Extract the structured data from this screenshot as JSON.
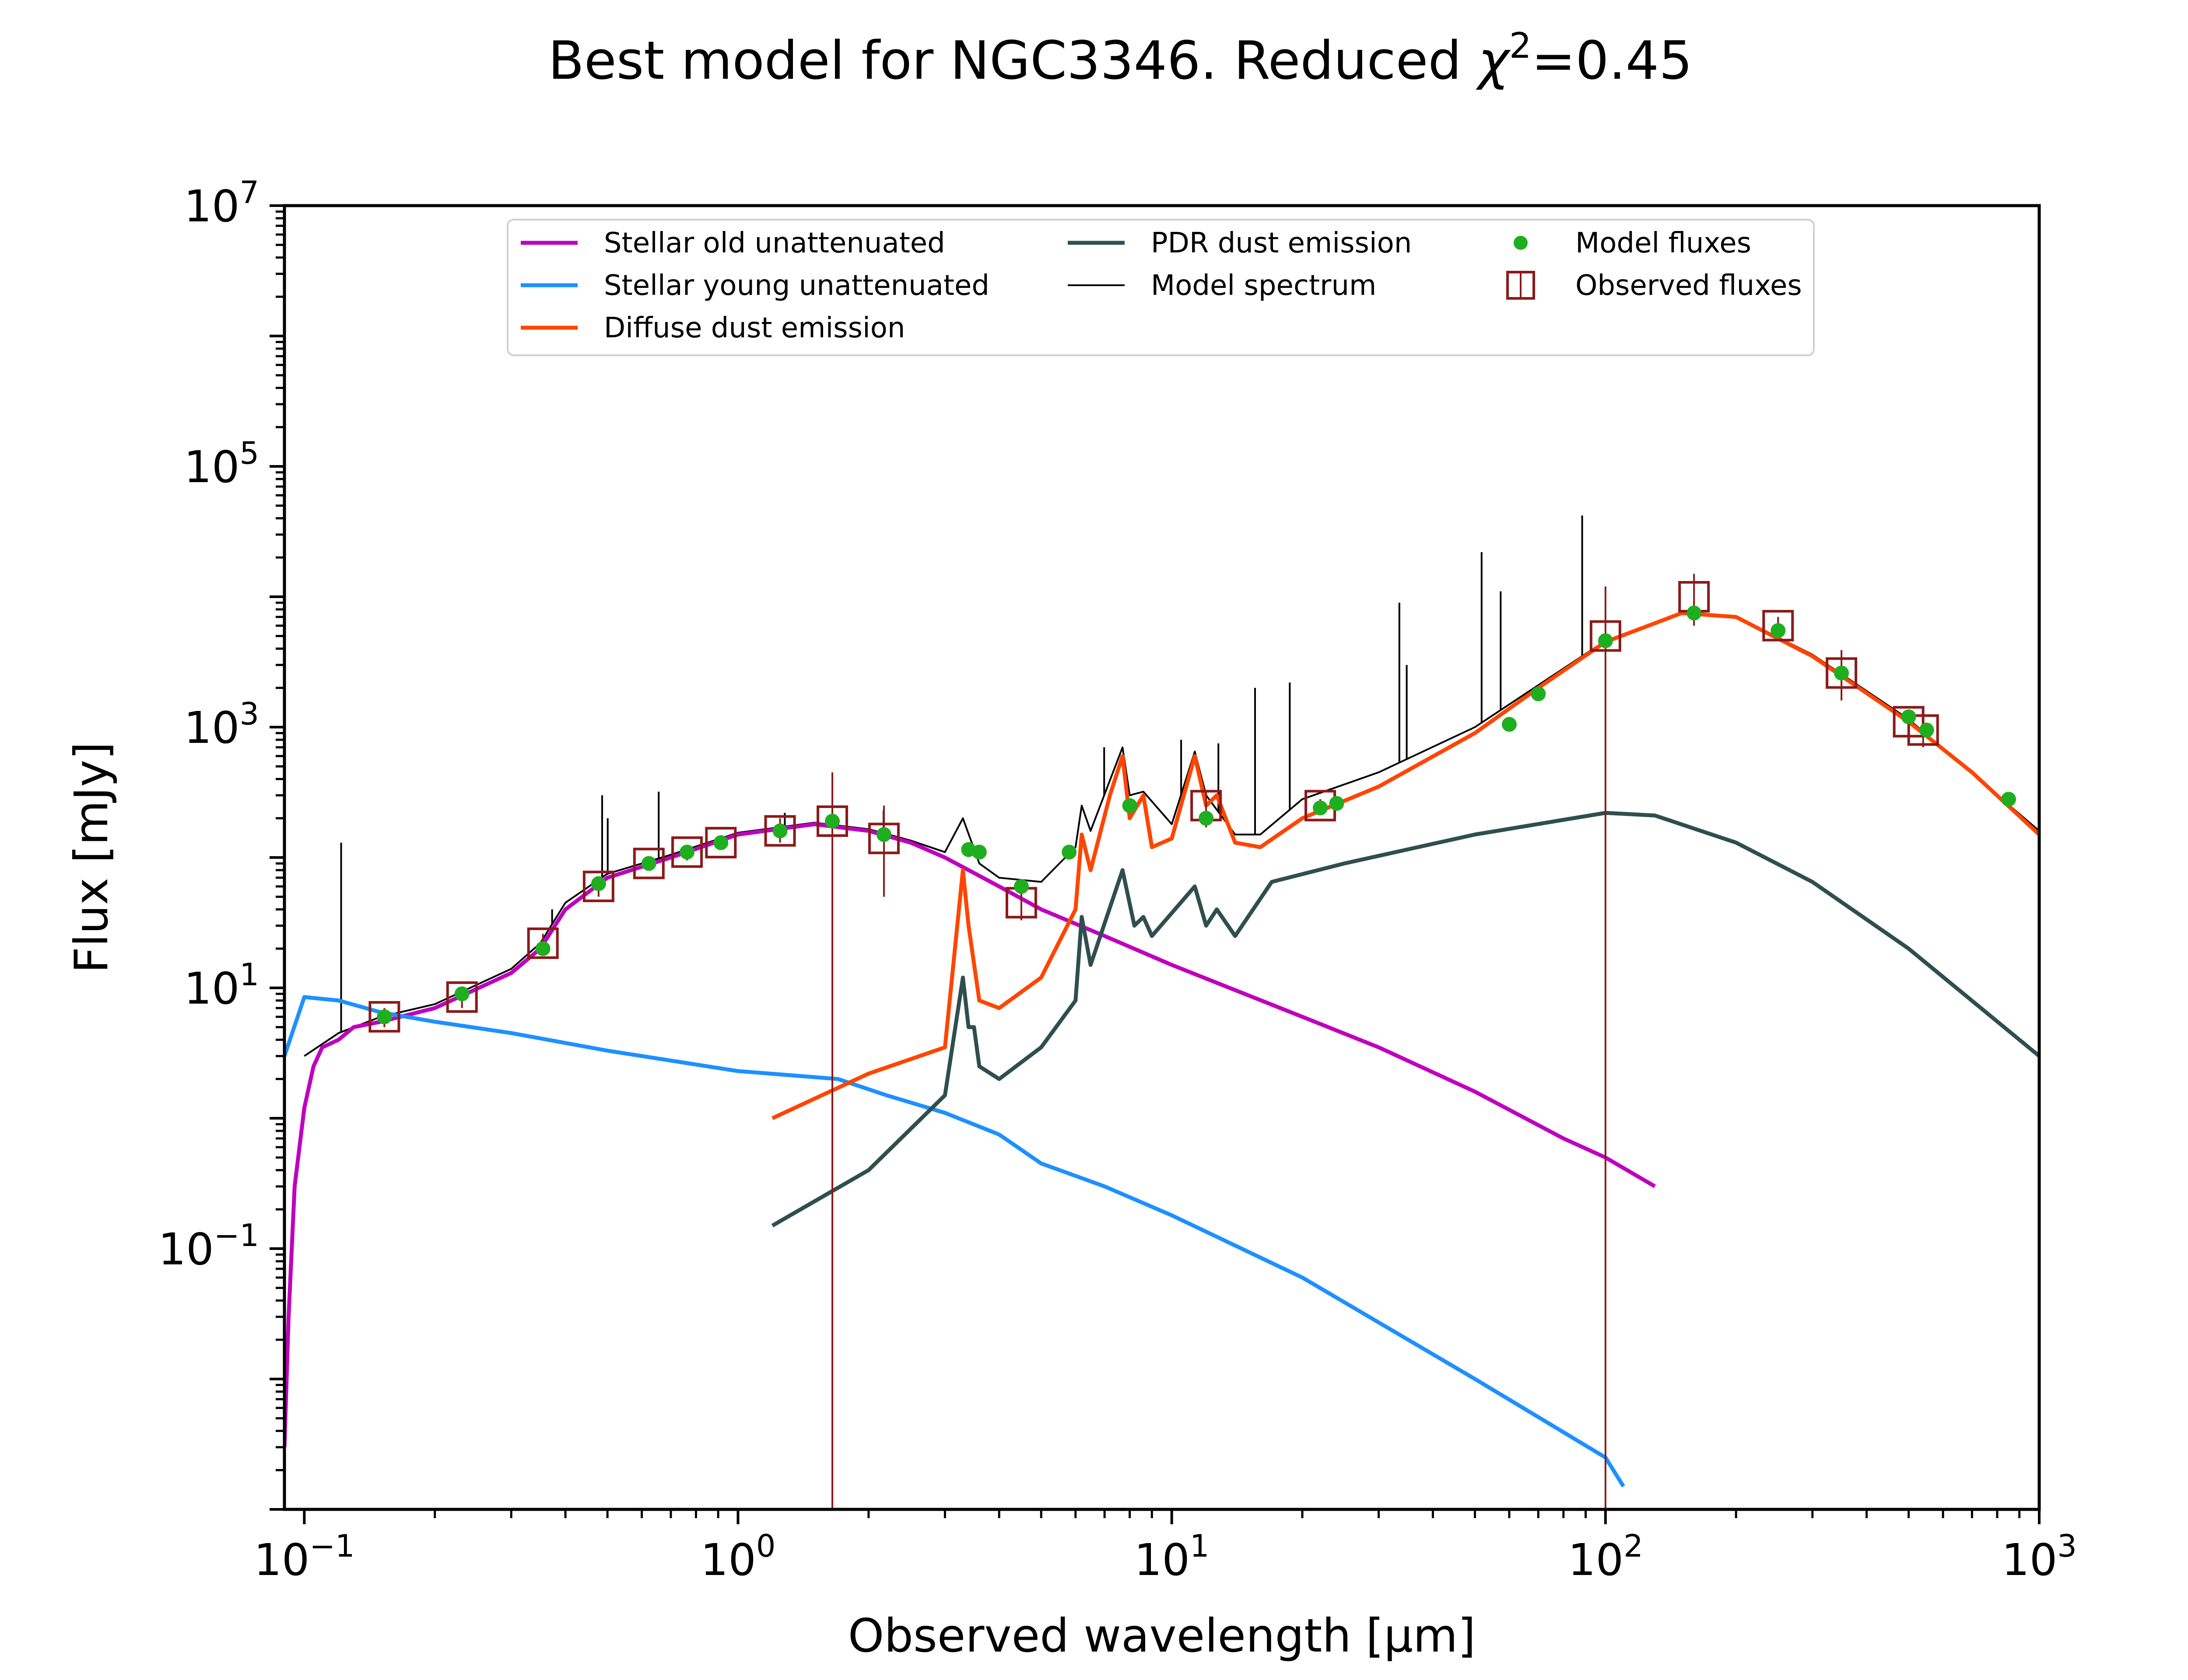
{
  "chart_data": {
    "type": "line",
    "title_text": "Best model for NGC3346. Reduced ",
    "title_chi": "χ",
    "title_exp": "2",
    "title_value": "=0.45",
    "xlabel": "Observed wavelength [μm]",
    "ylabel": "Flux [mJy]",
    "x_scale": "log",
    "y_scale": "log",
    "xlim": [
      0.09,
      1000
    ],
    "ylim": [
      0.001,
      10000000
    ],
    "x_ticks": [
      {
        "value": 0.1,
        "base": "10",
        "exp": "−1"
      },
      {
        "value": 1,
        "base": "10",
        "exp": "0"
      },
      {
        "value": 10,
        "base": "10",
        "exp": "1"
      },
      {
        "value": 100,
        "base": "10",
        "exp": "2"
      },
      {
        "value": 1000,
        "base": "10",
        "exp": "3"
      }
    ],
    "y_ticks": [
      {
        "value": 0.1,
        "base": "10",
        "exp": "−1"
      },
      {
        "value": 10,
        "base": "10",
        "exp": "1"
      },
      {
        "value": 1000,
        "base": "10",
        "exp": "3"
      },
      {
        "value": 100000,
        "base": "10",
        "exp": "5"
      },
      {
        "value": 10000000,
        "base": "10",
        "exp": "7"
      }
    ],
    "grid": false,
    "legend_position": "top-center",
    "legend": [
      {
        "label": "Stellar old unattenuated",
        "kind": "line",
        "color": "#bf00bf"
      },
      {
        "label": "Stellar young unattenuated",
        "kind": "line",
        "color": "#1e90ff"
      },
      {
        "label": "Diffuse dust emission",
        "kind": "line",
        "color": "#ff4500"
      },
      {
        "label": "PDR dust emission",
        "kind": "line",
        "color": "#2f4f4f"
      },
      {
        "label": "Model spectrum",
        "kind": "thinline",
        "color": "#000000"
      },
      {
        "label": "Model fluxes",
        "kind": "dot",
        "color": "#1fae1f"
      },
      {
        "label": "Observed fluxes",
        "kind": "square",
        "color": "#8b1a1a"
      }
    ],
    "series": [
      {
        "name": "Stellar old unattenuated",
        "color": "#bf00bf",
        "points": [
          [
            0.09,
            0.003
          ],
          [
            0.092,
            0.03
          ],
          [
            0.095,
            0.3
          ],
          [
            0.1,
            1.2
          ],
          [
            0.105,
            2.5
          ],
          [
            0.11,
            3.5
          ],
          [
            0.12,
            4
          ],
          [
            0.13,
            5
          ],
          [
            0.15,
            5.5
          ],
          [
            0.2,
            7
          ],
          [
            0.3,
            13
          ],
          [
            0.35,
            20
          ],
          [
            0.4,
            40
          ],
          [
            0.5,
            70
          ],
          [
            0.7,
            100
          ],
          [
            1.0,
            150
          ],
          [
            1.5,
            180
          ],
          [
            2.0,
            160
          ],
          [
            2.5,
            130
          ],
          [
            3.0,
            100
          ],
          [
            4.0,
            60
          ],
          [
            5.0,
            40
          ],
          [
            7.0,
            25
          ],
          [
            10,
            15
          ],
          [
            20,
            6
          ],
          [
            30,
            3.5
          ],
          [
            50,
            1.6
          ],
          [
            80,
            0.7
          ],
          [
            100,
            0.5
          ],
          [
            130,
            0.3
          ]
        ]
      },
      {
        "name": "Stellar young unattenuated",
        "color": "#1e90ff",
        "points": [
          [
            0.09,
            3
          ],
          [
            0.1,
            8.5
          ],
          [
            0.12,
            8
          ],
          [
            0.15,
            6.5
          ],
          [
            0.2,
            5.5
          ],
          [
            0.3,
            4.5
          ],
          [
            0.5,
            3.3
          ],
          [
            1.0,
            2.3
          ],
          [
            1.7,
            2.0
          ],
          [
            2.2,
            1.5
          ],
          [
            3,
            1.1
          ],
          [
            4,
            0.75
          ],
          [
            5,
            0.45
          ],
          [
            7,
            0.3
          ],
          [
            10,
            0.18
          ],
          [
            20,
            0.06
          ],
          [
            50,
            0.01
          ],
          [
            100,
            0.0025
          ],
          [
            110,
            0.0015
          ]
        ]
      },
      {
        "name": "Diffuse dust emission",
        "color": "#ff4500",
        "points": [
          [
            1.2,
            1.0
          ],
          [
            2,
            2.2
          ],
          [
            3,
            3.5
          ],
          [
            3.3,
            80
          ],
          [
            3.4,
            30
          ],
          [
            3.6,
            8
          ],
          [
            4,
            7
          ],
          [
            5,
            12
          ],
          [
            6,
            40
          ],
          [
            6.2,
            150
          ],
          [
            6.5,
            80
          ],
          [
            7.2,
            300
          ],
          [
            7.7,
            600
          ],
          [
            8,
            200
          ],
          [
            8.6,
            300
          ],
          [
            9,
            120
          ],
          [
            10,
            140
          ],
          [
            11.3,
            600
          ],
          [
            12,
            250
          ],
          [
            12.7,
            300
          ],
          [
            14,
            130
          ],
          [
            16,
            120
          ],
          [
            20,
            200
          ],
          [
            30,
            350
          ],
          [
            50,
            900
          ],
          [
            70,
            2000
          ],
          [
            100,
            4500
          ],
          [
            150,
            7500
          ],
          [
            200,
            7000
          ],
          [
            300,
            3500
          ],
          [
            500,
            1100
          ],
          [
            700,
            450
          ],
          [
            1000,
            150
          ]
        ]
      },
      {
        "name": "PDR dust emission",
        "color": "#2f4f4f",
        "points": [
          [
            1.2,
            0.15
          ],
          [
            2,
            0.4
          ],
          [
            3,
            1.5
          ],
          [
            3.3,
            12
          ],
          [
            3.4,
            5
          ],
          [
            3.5,
            5
          ],
          [
            3.6,
            2.5
          ],
          [
            4,
            2
          ],
          [
            5,
            3.5
          ],
          [
            6,
            8
          ],
          [
            6.2,
            35
          ],
          [
            6.5,
            15
          ],
          [
            7.7,
            80
          ],
          [
            8.2,
            30
          ],
          [
            8.6,
            35
          ],
          [
            9,
            25
          ],
          [
            11.3,
            60
          ],
          [
            12,
            30
          ],
          [
            12.7,
            40
          ],
          [
            14,
            25
          ],
          [
            17,
            65
          ],
          [
            25,
            90
          ],
          [
            50,
            150
          ],
          [
            100,
            220
          ],
          [
            130,
            210
          ],
          [
            200,
            130
          ],
          [
            300,
            65
          ],
          [
            500,
            20
          ],
          [
            1000,
            3
          ]
        ]
      },
      {
        "name": "Model spectrum",
        "color": "#000000",
        "points": [
          [
            0.1,
            3
          ],
          [
            0.12,
            4.5
          ],
          [
            0.15,
            6
          ],
          [
            0.2,
            7.5
          ],
          [
            0.3,
            14
          ],
          [
            0.35,
            22
          ],
          [
            0.4,
            45
          ],
          [
            0.5,
            75
          ],
          [
            0.7,
            105
          ],
          [
            1.0,
            155
          ],
          [
            1.5,
            185
          ],
          [
            2.0,
            165
          ],
          [
            2.5,
            135
          ],
          [
            3.0,
            110
          ],
          [
            3.3,
            200
          ],
          [
            3.6,
            90
          ],
          [
            4,
            70
          ],
          [
            5,
            65
          ],
          [
            6,
            120
          ],
          [
            6.2,
            250
          ],
          [
            6.5,
            160
          ],
          [
            7.7,
            700
          ],
          [
            8,
            300
          ],
          [
            8.6,
            320
          ],
          [
            10,
            180
          ],
          [
            11.3,
            650
          ],
          [
            12,
            300
          ],
          [
            14,
            150
          ],
          [
            16,
            150
          ],
          [
            20,
            280
          ],
          [
            30,
            450
          ],
          [
            50,
            1000
          ],
          [
            70,
            2100
          ],
          [
            100,
            4600
          ],
          [
            150,
            7600
          ],
          [
            200,
            7100
          ],
          [
            300,
            3600
          ],
          [
            500,
            1150
          ],
          [
            1000,
            160
          ]
        ]
      }
    ],
    "emission_lines": [
      {
        "x": 0.1216,
        "flux": 130
      },
      {
        "x": 0.3727,
        "flux": 40
      },
      {
        "x": 0.4861,
        "flux": 300
      },
      {
        "x": 0.5007,
        "flux": 200
      },
      {
        "x": 0.6563,
        "flux": 320
      },
      {
        "x": 1.282,
        "flux": 220
      },
      {
        "x": 2.166,
        "flux": 230
      },
      {
        "x": 6.985,
        "flux": 700
      },
      {
        "x": 10.51,
        "flux": 800
      },
      {
        "x": 12.81,
        "flux": 750
      },
      {
        "x": 15.56,
        "flux": 2000
      },
      {
        "x": 18.71,
        "flux": 2200
      },
      {
        "x": 33.48,
        "flux": 9000
      },
      {
        "x": 34.81,
        "flux": 3000
      },
      {
        "x": 51.81,
        "flux": 22000
      },
      {
        "x": 57.32,
        "flux": 11000
      },
      {
        "x": 88.36,
        "flux": 42000
      }
    ],
    "model_fluxes": [
      [
        0.153,
        6
      ],
      [
        0.231,
        9
      ],
      [
        0.355,
        20
      ],
      [
        0.477,
        63
      ],
      [
        0.623,
        90
      ],
      [
        0.763,
        110
      ],
      [
        0.913,
        130
      ],
      [
        1.25,
        160
      ],
      [
        1.65,
        190
      ],
      [
        2.17,
        150
      ],
      [
        3.4,
        115
      ],
      [
        3.6,
        110
      ],
      [
        4.5,
        60
      ],
      [
        5.8,
        110
      ],
      [
        8.0,
        250
      ],
      [
        12,
        200
      ],
      [
        22,
        240
      ],
      [
        24,
        260
      ],
      [
        60,
        1050
      ],
      [
        70,
        1800
      ],
      [
        100,
        4600
      ],
      [
        160,
        7500
      ],
      [
        250,
        5500
      ],
      [
        350,
        2600
      ],
      [
        500,
        1200
      ],
      [
        550,
        950
      ],
      [
        850,
        280
      ]
    ],
    "observed_fluxes": [
      {
        "x": 0.153,
        "y": 6,
        "err_lo": 5,
        "err_hi": 7
      },
      {
        "x": 0.231,
        "y": 8.5,
        "err_lo": 7,
        "err_hi": 10
      },
      {
        "x": 0.355,
        "y": 22,
        "err_lo": 18,
        "err_hi": 26
      },
      {
        "x": 0.477,
        "y": 60,
        "err_lo": 50,
        "err_hi": 70
      },
      {
        "x": 0.623,
        "y": 90,
        "err_lo": 80,
        "err_hi": 100
      },
      {
        "x": 0.763,
        "y": 110,
        "err_lo": 95,
        "err_hi": 125
      },
      {
        "x": 0.913,
        "y": 130,
        "err_lo": 115,
        "err_hi": 145
      },
      {
        "x": 1.25,
        "y": 160,
        "err_lo": 130,
        "err_hi": 200
      },
      {
        "x": 1.65,
        "y": 190,
        "err_lo": 0.001,
        "err_hi": 450
      },
      {
        "x": 2.17,
        "y": 140,
        "err_lo": 50,
        "err_hi": 250
      },
      {
        "x": 4.5,
        "y": 45,
        "err_lo": 33,
        "err_hi": 60
      },
      {
        "x": 12,
        "y": 250,
        "err_lo": 170,
        "err_hi": 330
      },
      {
        "x": 22,
        "y": 250,
        "err_lo": 220,
        "err_hi": 280
      },
      {
        "x": 100,
        "y": 5000,
        "err_lo": 0.001,
        "err_hi": 12000
      },
      {
        "x": 160,
        "y": 10000,
        "err_lo": 6000,
        "err_hi": 15000
      },
      {
        "x": 250,
        "y": 6000,
        "err_lo": 5000,
        "err_hi": 7000
      },
      {
        "x": 350,
        "y": 2600,
        "err_lo": 1600,
        "err_hi": 3900
      },
      {
        "x": 500,
        "y": 1100,
        "err_lo": 900,
        "err_hi": 1300
      },
      {
        "x": 540,
        "y": 950,
        "err_lo": 700,
        "err_hi": 1200
      }
    ]
  }
}
